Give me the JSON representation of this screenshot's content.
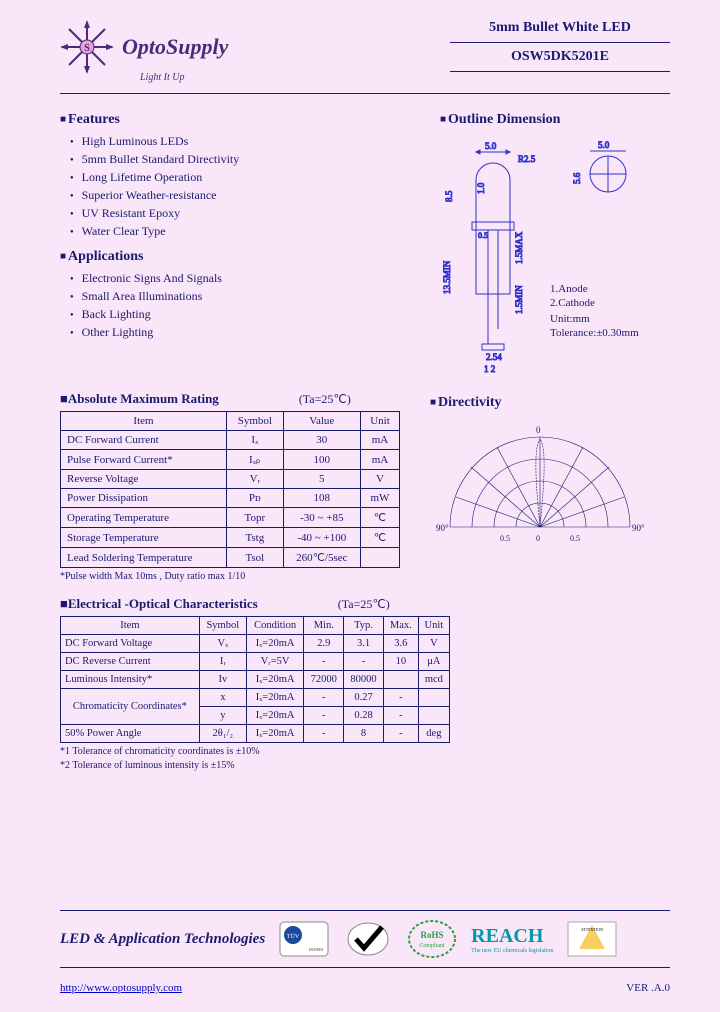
{
  "header": {
    "brand": "OptoSupply",
    "tagline": "Light It Up",
    "product_type": "5mm Bullet White LED",
    "part_no": "OSW5DK5201E"
  },
  "features": {
    "title": "Features",
    "items": [
      "High Luminous LEDs",
      "5mm Bullet Standard Directivity",
      "Long Lifetime Operation",
      "Superior Weather-resistance",
      "UV Resistant Epoxy",
      "Water Clear Type"
    ]
  },
  "applications": {
    "title": "Applications",
    "items": [
      "Electronic Signs And Signals",
      "Small Area Illuminations",
      "Back Lighting",
      "Other Lighting"
    ]
  },
  "outline": {
    "title": "Outline Dimension",
    "dims": {
      "d": "5.0",
      "r": "R2.5",
      "h1": "8.5",
      "h2": "1.0",
      "flange": "5.6",
      "body": "0.5",
      "lead_min": "13.5MIN",
      "lead_max": "1.5MAX",
      "lead_min2": "1.5MIN",
      "pitch": "2.54"
    },
    "legend": [
      "1.Anode",
      "2.Cathode",
      "Unit:mm",
      "Tolerance:±0.30mm"
    ]
  },
  "amr": {
    "title": "Absolute Maximum Rating",
    "cond": "(Ta=25℃)",
    "headers": [
      "Item",
      "Symbol",
      "Value",
      "Unit"
    ],
    "rows": [
      [
        "DC Forward Current",
        "Iₓ",
        "30",
        "mA"
      ],
      [
        "Pulse Forward Current*",
        "Iₓₚ",
        "100",
        "mA"
      ],
      [
        "Reverse Voltage",
        "Vᵣ",
        "5",
        "V"
      ],
      [
        "Power Dissipation",
        "Pᴅ",
        "108",
        "mW"
      ],
      [
        "Operating Temperature",
        "Topr",
        "-30 ~ +85",
        "℃"
      ],
      [
        "Storage Temperature",
        "Tstg",
        "-40 ~ +100",
        "℃"
      ],
      [
        "Lead Soldering Temperature",
        "Tsol",
        "260℃/5sec",
        ""
      ]
    ],
    "note": "*Pulse width Max 10ms , Duty ratio max 1/10"
  },
  "directivity": {
    "title": "Directivity",
    "ticks": [
      "90°",
      "",
      "",
      "",
      "0",
      "",
      "",
      "",
      "90°"
    ],
    "r": [
      "0.5",
      "0",
      "0.5"
    ]
  },
  "eo": {
    "title": "Electrical -Optical Characteristics",
    "cond": "(Ta=25℃)",
    "headers": [
      "Item",
      "Symbol",
      "Condition",
      "Min.",
      "Typ.",
      "Max.",
      "Unit"
    ],
    "rows": [
      [
        "DC Forward Voltage",
        "Vₓ",
        "Iₓ=20mA",
        "2.9",
        "3.1",
        "3.6",
        "V"
      ],
      [
        "DC Reverse Current",
        "Iᵣ",
        "Vᵣ=5V",
        "-",
        "-",
        "10",
        "μA"
      ],
      [
        "Luminous Intensity*",
        "Iv",
        "Iₓ=20mA",
        "72000",
        "80000",
        "",
        "mcd"
      ],
      [
        "",
        "x",
        "Iₓ=20mA",
        "-",
        "0.27",
        "-",
        ""
      ],
      [
        "",
        "y",
        "Iₓ=20mA",
        "-",
        "0.28",
        "-",
        ""
      ],
      [
        "50% Power Angle",
        "2θ₁/₂",
        "Iₓ=20mA",
        "-",
        "8",
        "-",
        "deg"
      ]
    ],
    "chrom_label": "Chromaticity Coordinates*",
    "notes": [
      "*1 Tolerance of chromaticity coordinates is ±10%",
      "*2 Tolerance of luminous intensity is ±15%"
    ]
  },
  "footer": {
    "title": "LED & Application Technologies",
    "reach": "REACH",
    "reach_sub": "The new EU chemicals legislation",
    "url": "http://www.optosupply.com",
    "ver": "VER .A.0"
  },
  "colors": {
    "text": "#1a1a6e",
    "bg": "#f9e6f9",
    "brand": "#4b2a7a",
    "reach": "#0099a8",
    "green": "#2e9e3f",
    "dim": "#3030cc"
  }
}
